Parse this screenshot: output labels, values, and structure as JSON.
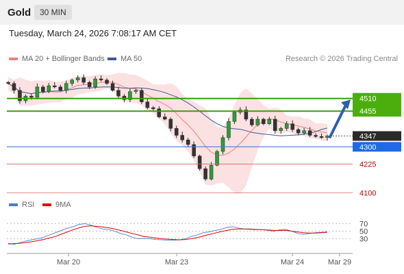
{
  "header": {
    "asset": "Gold",
    "interval": "30 MIN"
  },
  "datetime": "Tuesday, March 24, 2026 7:08:17 AM CET",
  "legend": {
    "items": [
      {
        "label": "MA 20 + Bollinger Bands",
        "color": "#f08080"
      },
      {
        "label": "MA 50",
        "color": "#3a5a95"
      }
    ],
    "copyright": "Research © 2026 Trading Central"
  },
  "chart_data": [
    {
      "type": "candlestick",
      "title": "",
      "ylim": [
        4075,
        4640
      ],
      "x_ticks": [
        "Mar 20",
        "Mar 23",
        "Mar 24",
        "Mar 29"
      ],
      "last_price": 4347,
      "levels": [
        {
          "value": 4510,
          "label": "4510",
          "kind": "resistance"
        },
        {
          "value": 4455,
          "label": "4455",
          "kind": "resistance"
        },
        {
          "value": 4300,
          "label": "4300",
          "kind": "pivot"
        },
        {
          "value": 4225,
          "label": "4225",
          "kind": "support"
        },
        {
          "value": 4100,
          "label": "4100",
          "kind": "support"
        }
      ],
      "close_path": [
        4575,
        4545,
        4500,
        4520,
        4515,
        4560,
        4540,
        4565,
        4560,
        4545,
        4575,
        4590,
        4600,
        4580,
        4560,
        4595,
        4590,
        4575,
        4545,
        4520,
        4505,
        4540,
        4545,
        4495,
        4470,
        4465,
        4430,
        4420,
        4380,
        4350,
        4330,
        4310,
        4260,
        4205,
        4160,
        4220,
        4280,
        4340,
        4410,
        4450,
        4460,
        4420,
        4395,
        4420,
        4400,
        4420,
        4370,
        4380,
        4400,
        4375,
        4360,
        4370,
        4350,
        4345,
        4340,
        4347
      ],
      "series": [
        {
          "name": "MA 20 + Bollinger Bands"
        },
        {
          "name": "MA 50"
        }
      ]
    },
    {
      "type": "line",
      "title": "",
      "ylim": [
        0,
        100
      ],
      "y_ticks": [
        70,
        50,
        30
      ],
      "series": [
        {
          "name": "RSI",
          "color": "#4a7ad0",
          "values": [
            18,
            15,
            20,
            24,
            27,
            30,
            34,
            40,
            46,
            52,
            58,
            62,
            68,
            70,
            66,
            60,
            56,
            54,
            50,
            44,
            40,
            34,
            30,
            31,
            30,
            28,
            27,
            26,
            26,
            27,
            30,
            36,
            40,
            46,
            48,
            52,
            55,
            60,
            62,
            58,
            56,
            56,
            55,
            54,
            52,
            50,
            54,
            55,
            50,
            44,
            42,
            44,
            46,
            47,
            48
          ]
        },
        {
          "name": "9MA",
          "color": "#e00000",
          "values": [
            16,
            17,
            18,
            20,
            22,
            25,
            28,
            32,
            36,
            42,
            48,
            54,
            59,
            63,
            64,
            63,
            61,
            59,
            56,
            52,
            48,
            44,
            40,
            36,
            34,
            32,
            30,
            29,
            28,
            27,
            28,
            30,
            33,
            37,
            41,
            45,
            49,
            52,
            55,
            56,
            56,
            55,
            54,
            54,
            53,
            52,
            52,
            52,
            50,
            48,
            46,
            45,
            45,
            46,
            47
          ]
        }
      ]
    }
  ]
}
